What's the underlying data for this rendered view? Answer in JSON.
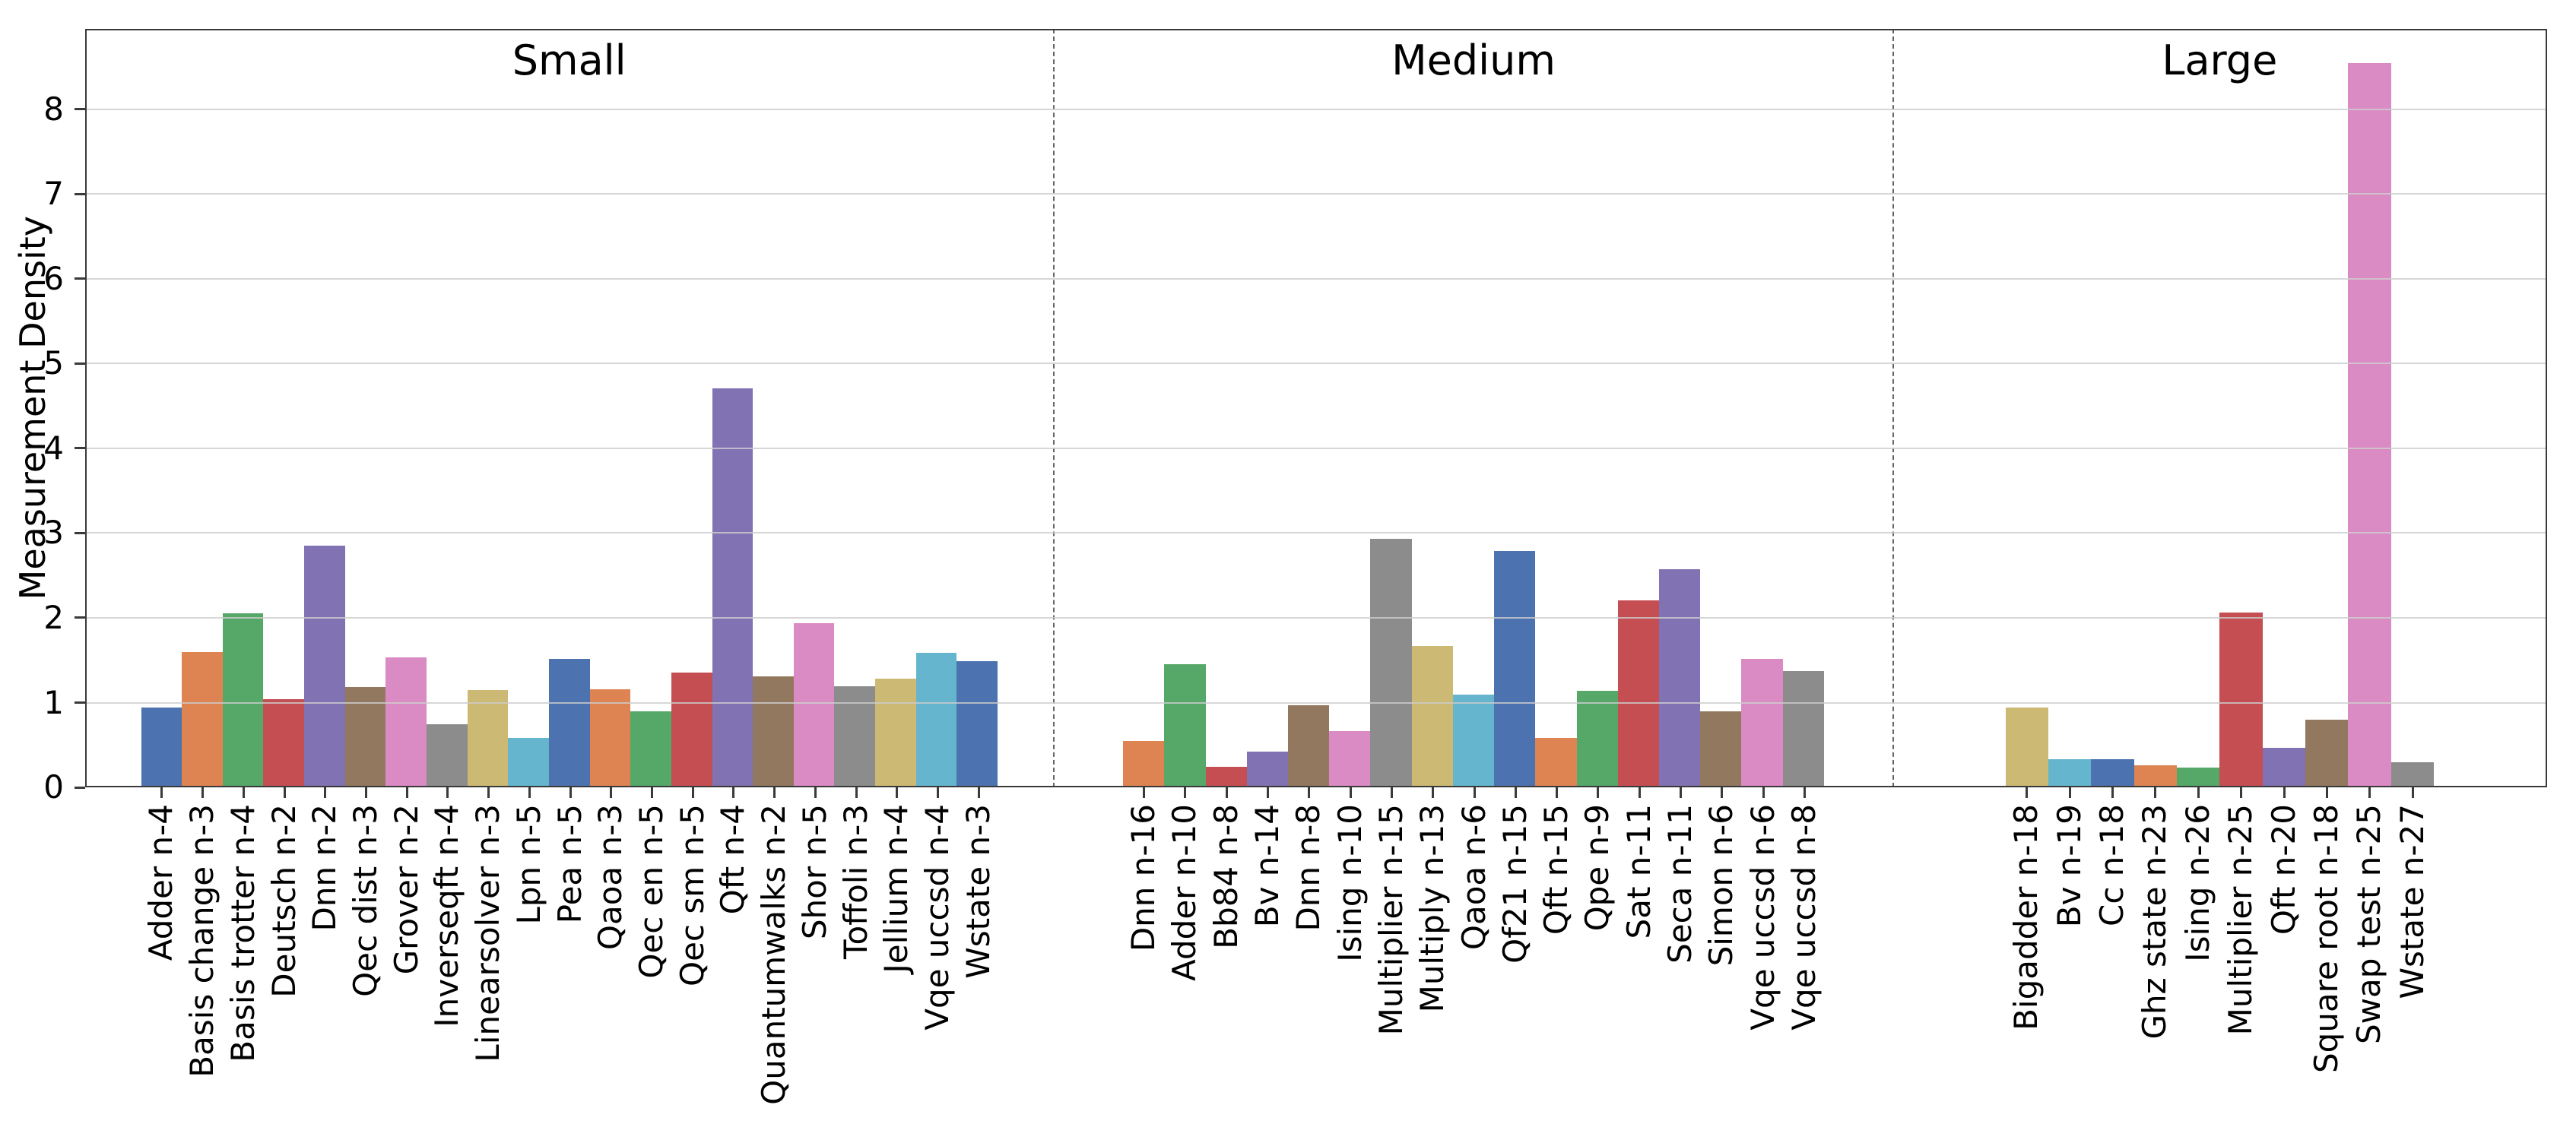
{
  "chart_data": {
    "type": "bar",
    "title": "",
    "xlabel": "",
    "ylabel": "Measurement Density",
    "ylim": [
      0,
      8.95
    ],
    "yticks": [
      0,
      1,
      2,
      3,
      4,
      5,
      6,
      7,
      8
    ],
    "grid": "horizontal gridlines on, drawn over bars",
    "legend": false,
    "panel_separator_style": "vertical dashed line",
    "palette_seaborn_deep": [
      "#4c72b0",
      "#dd8452",
      "#55a868",
      "#c44e52",
      "#8172b3",
      "#937860",
      "#da8bc3",
      "#8c8c8c",
      "#ccb974",
      "#64b5cd"
    ],
    "panels": [
      {
        "title": "Small",
        "bars": [
          {
            "label": "Adder n-4",
            "value": 0.94,
            "color": "#4c72b0"
          },
          {
            "label": "Basis change n-3",
            "value": 1.6,
            "color": "#dd8452"
          },
          {
            "label": "Basis trotter n-4",
            "value": 2.05,
            "color": "#55a868"
          },
          {
            "label": "Deutsch n-2",
            "value": 1.04,
            "color": "#c44e52"
          },
          {
            "label": "Dnn n-2",
            "value": 2.85,
            "color": "#8172b3"
          },
          {
            "label": "Qec dist n-3",
            "value": 1.18,
            "color": "#937860"
          },
          {
            "label": "Grover n-2",
            "value": 1.53,
            "color": "#da8bc3"
          },
          {
            "label": "Inverseqft n-4",
            "value": 0.74,
            "color": "#8c8c8c"
          },
          {
            "label": "Linearsolver n-3",
            "value": 1.15,
            "color": "#ccb974"
          },
          {
            "label": "Lpn n-5",
            "value": 0.58,
            "color": "#64b5cd"
          },
          {
            "label": "Pea n-5",
            "value": 1.52,
            "color": "#4c72b0"
          },
          {
            "label": "Qaoa n-3",
            "value": 1.16,
            "color": "#dd8452"
          },
          {
            "label": "Qec en n-5",
            "value": 0.9,
            "color": "#55a868"
          },
          {
            "label": "Qec sm n-5",
            "value": 1.35,
            "color": "#c44e52"
          },
          {
            "label": "Qft n-4",
            "value": 4.71,
            "color": "#8172b3"
          },
          {
            "label": "Quantumwalks n-2",
            "value": 1.31,
            "color": "#937860"
          },
          {
            "label": "Shor n-5",
            "value": 1.94,
            "color": "#da8bc3"
          },
          {
            "label": "Toffoli n-3",
            "value": 1.19,
            "color": "#8c8c8c"
          },
          {
            "label": "Jellium n-4",
            "value": 1.28,
            "color": "#ccb974"
          },
          {
            "label": "Vqe uccsd n-4",
            "value": 1.59,
            "color": "#64b5cd"
          },
          {
            "label": "Wstate n-3",
            "value": 1.49,
            "color": "#4c72b0"
          }
        ]
      },
      {
        "title": "Medium",
        "bars": [
          {
            "label": "Dnn n-16",
            "value": 0.55,
            "color": "#dd8452"
          },
          {
            "label": "Adder n-10",
            "value": 1.45,
            "color": "#55a868"
          },
          {
            "label": "Bb84 n-8",
            "value": 0.24,
            "color": "#c44e52"
          },
          {
            "label": "Bv n-14",
            "value": 0.42,
            "color": "#8172b3"
          },
          {
            "label": "Dnn n-8",
            "value": 0.97,
            "color": "#937860"
          },
          {
            "label": "Ising n-10",
            "value": 0.66,
            "color": "#da8bc3"
          },
          {
            "label": "Multiplier n-15",
            "value": 2.93,
            "color": "#8c8c8c"
          },
          {
            "label": "Multiply n-13",
            "value": 1.67,
            "color": "#ccb974"
          },
          {
            "label": "Qaoa n-6",
            "value": 1.09,
            "color": "#64b5cd"
          },
          {
            "label": "Qf21 n-15",
            "value": 2.79,
            "color": "#4c72b0"
          },
          {
            "label": "Qft n-15",
            "value": 0.58,
            "color": "#dd8452"
          },
          {
            "label": "Qpe n-9",
            "value": 1.14,
            "color": "#55a868"
          },
          {
            "label": "Sat n-11",
            "value": 2.21,
            "color": "#c44e52"
          },
          {
            "label": "Seca n-11",
            "value": 2.57,
            "color": "#8172b3"
          },
          {
            "label": "Simon n-6",
            "value": 0.9,
            "color": "#937860"
          },
          {
            "label": "Vqe uccsd n-6",
            "value": 1.52,
            "color": "#da8bc3"
          },
          {
            "label": "Vqe uccsd n-8",
            "value": 1.37,
            "color": "#8c8c8c"
          }
        ]
      },
      {
        "title": "Large",
        "bars": [
          {
            "label": "Bigadder n-18",
            "value": 0.94,
            "color": "#ccb974"
          },
          {
            "label": "Bv n-19",
            "value": 0.33,
            "color": "#64b5cd"
          },
          {
            "label": "Cc n-18",
            "value": 0.33,
            "color": "#4c72b0"
          },
          {
            "label": "Ghz state n-23",
            "value": 0.26,
            "color": "#dd8452"
          },
          {
            "label": "Ising n-26",
            "value": 0.23,
            "color": "#55a868"
          },
          {
            "label": "Multiplier n-25",
            "value": 2.06,
            "color": "#c44e52"
          },
          {
            "label": "Qft n-20",
            "value": 0.47,
            "color": "#8172b3"
          },
          {
            "label": "Square root n-18",
            "value": 0.8,
            "color": "#937860"
          },
          {
            "label": "Swap test n-25",
            "value": 8.55,
            "color": "#da8bc3"
          },
          {
            "label": "Wstate n-27",
            "value": 0.3,
            "color": "#8c8c8c"
          }
        ]
      }
    ]
  },
  "colors": {
    "background": "#ffffff",
    "gridline": "#cdcdcd",
    "spine": "#3a3a3a",
    "separator": "#666666",
    "text": "#000000"
  }
}
